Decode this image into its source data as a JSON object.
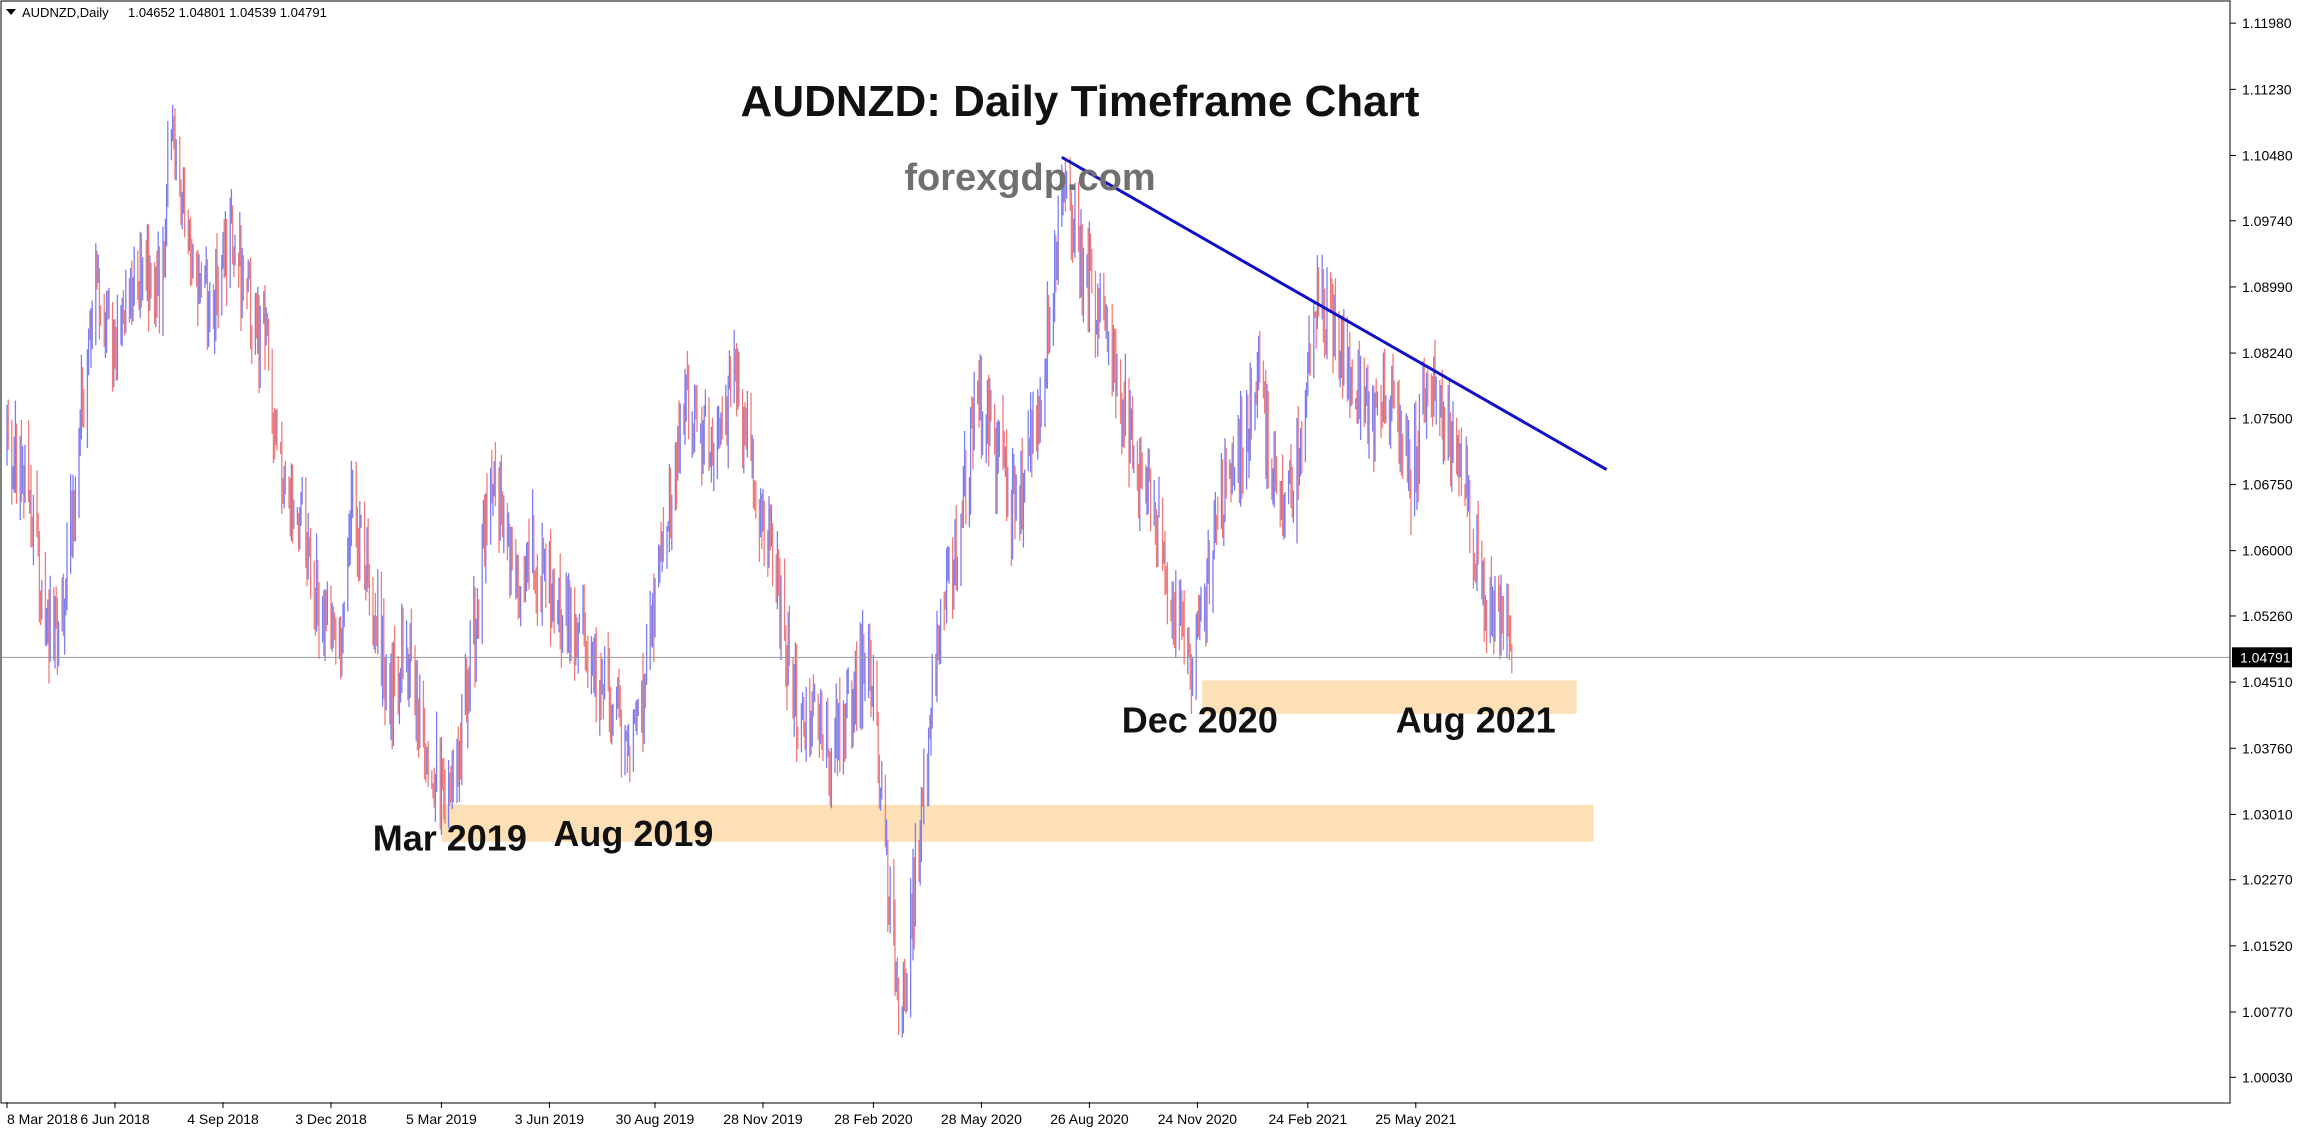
{
  "window": {
    "header_symbol": "AUDNZD,Daily",
    "header_ohlc": "1.04652 1.04801 1.04539 1.04791"
  },
  "colors": {
    "background": "#ffffff",
    "bull_candle": "#7b7ef0",
    "bear_candle": "#f07b7b",
    "trendline": "#1010c8",
    "zone_fill": "#fde0b6",
    "axis": "#000000",
    "price_line": "#9a9a9a"
  },
  "chart_data": {
    "type": "candlestick",
    "title": "AUDNZD: Daily Timeframe Chart",
    "subtitle": "forexgdp.com",
    "xlabel": "",
    "ylabel": "",
    "x_tick_labels": [
      "8 Mar 2018",
      "6 Jun 2018",
      "4 Sep 2018",
      "3 Dec 2018",
      "5 Mar 2019",
      "3 Jun 2019",
      "30 Aug 2019",
      "28 Nov 2019",
      "28 Feb 2020",
      "28 May 2020",
      "26 Aug 2020",
      "24 Nov 2020",
      "24 Feb 2021",
      "25 May 2021"
    ],
    "y_tick_labels": [
      "1.11980",
      "1.11230",
      "1.10480",
      "1.09740",
      "1.08990",
      "1.08240",
      "1.07500",
      "1.06750",
      "1.06000",
      "1.05260",
      "1.04510",
      "1.03760",
      "1.03010",
      "1.02270",
      "1.01520",
      "1.00770",
      "1.00030"
    ],
    "ylim": [
      0.9975,
      1.1222
    ],
    "x_range": [
      "2018-03-08",
      "2021-08-13"
    ],
    "current_price": "1.04791",
    "price_path": [
      [
        "2018-03-08",
        1.072
      ],
      [
        "2018-03-25",
        1.068
      ],
      [
        "2018-04-10",
        1.052
      ],
      [
        "2018-04-20",
        1.05
      ],
      [
        "2018-05-05",
        1.07
      ],
      [
        "2018-05-20",
        1.092
      ],
      [
        "2018-06-05",
        1.083
      ],
      [
        "2018-06-25",
        1.092
      ],
      [
        "2018-07-15",
        1.089
      ],
      [
        "2018-07-22",
        1.109
      ],
      [
        "2018-08-10",
        1.093
      ],
      [
        "2018-08-25",
        1.088
      ],
      [
        "2018-09-10",
        1.096
      ],
      [
        "2018-09-25",
        1.089
      ],
      [
        "2018-10-10",
        1.082
      ],
      [
        "2018-10-25",
        1.068
      ],
      [
        "2018-11-10",
        1.062
      ],
      [
        "2018-11-25",
        1.053
      ],
      [
        "2018-12-10",
        1.048
      ],
      [
        "2018-12-20",
        1.064
      ],
      [
        "2019-01-05",
        1.056
      ],
      [
        "2019-01-20",
        1.044
      ],
      [
        "2019-02-05",
        1.048
      ],
      [
        "2019-02-20",
        1.038
      ],
      [
        "2019-03-12",
        1.03
      ],
      [
        "2019-04-01",
        1.05
      ],
      [
        "2019-04-15",
        1.068
      ],
      [
        "2019-05-05",
        1.057
      ],
      [
        "2019-05-20",
        1.06
      ],
      [
        "2019-06-10",
        1.053
      ],
      [
        "2019-06-25",
        1.052
      ],
      [
        "2019-07-10",
        1.045
      ],
      [
        "2019-07-25",
        1.043
      ],
      [
        "2019-08-10",
        1.037
      ],
      [
        "2019-08-25",
        1.048
      ],
      [
        "2019-09-10",
        1.064
      ],
      [
        "2019-09-25",
        1.078
      ],
      [
        "2019-10-10",
        1.073
      ],
      [
        "2019-10-25",
        1.072
      ],
      [
        "2019-11-05",
        1.081
      ],
      [
        "2019-11-20",
        1.067
      ],
      [
        "2019-12-10",
        1.056
      ],
      [
        "2019-12-25",
        1.042
      ],
      [
        "2020-01-10",
        1.04
      ],
      [
        "2020-01-25",
        1.037
      ],
      [
        "2020-02-10",
        1.042
      ],
      [
        "2020-02-25",
        1.049
      ],
      [
        "2020-03-10",
        1.025
      ],
      [
        "2020-03-20",
        1.006
      ],
      [
        "2020-04-05",
        1.025
      ],
      [
        "2020-04-25",
        1.055
      ],
      [
        "2020-05-10",
        1.062
      ],
      [
        "2020-05-25",
        1.078
      ],
      [
        "2020-06-10",
        1.071
      ],
      [
        "2020-06-25",
        1.064
      ],
      [
        "2020-07-10",
        1.073
      ],
      [
        "2020-07-25",
        1.087
      ],
      [
        "2020-08-05",
        1.101
      ],
      [
        "2020-08-20",
        1.092
      ],
      [
        "2020-09-05",
        1.086
      ],
      [
        "2020-09-20",
        1.078
      ],
      [
        "2020-10-05",
        1.07
      ],
      [
        "2020-10-20",
        1.063
      ],
      [
        "2020-11-05",
        1.053
      ],
      [
        "2020-11-20",
        1.047
      ],
      [
        "2020-12-10",
        1.063
      ],
      [
        "2020-12-30",
        1.072
      ],
      [
        "2021-01-15",
        1.079
      ],
      [
        "2021-01-25",
        1.068
      ],
      [
        "2021-02-05",
        1.062
      ],
      [
        "2021-02-20",
        1.075
      ],
      [
        "2021-03-05",
        1.09
      ],
      [
        "2021-03-20",
        1.084
      ],
      [
        "2021-04-05",
        1.079
      ],
      [
        "2021-04-20",
        1.075
      ],
      [
        "2021-05-05",
        1.078
      ],
      [
        "2021-05-20",
        1.067
      ],
      [
        "2021-06-05",
        1.08
      ],
      [
        "2021-06-20",
        1.074
      ],
      [
        "2021-07-05",
        1.068
      ],
      [
        "2021-07-20",
        1.056
      ],
      [
        "2021-08-05",
        1.051
      ],
      [
        "2021-08-13",
        1.0479
      ]
    ],
    "annotations": [
      {
        "text": "Mar 2019",
        "date": "2019-03-12",
        "price": 1.026
      },
      {
        "text": "Aug 2019",
        "date": "2019-08-12",
        "price": 1.0265
      },
      {
        "text": "Dec 2020",
        "date": "2020-11-26",
        "price": 1.0394
      },
      {
        "text": "Aug 2021",
        "date": "2021-07-14",
        "price": 1.0394
      }
    ],
    "trendline": {
      "from": [
        "2020-08-03",
        1.1046
      ],
      "to": [
        "2021-10-31",
        1.0692
      ]
    },
    "zones": [
      {
        "from_date": "2019-03-05",
        "to_date": "2021-10-20",
        "low": 1.027,
        "high": 1.0312
      },
      {
        "from_date": "2020-11-28",
        "to_date": "2021-10-06",
        "low": 1.0415,
        "high": 1.0453
      }
    ],
    "grid": false,
    "legend": "none"
  }
}
